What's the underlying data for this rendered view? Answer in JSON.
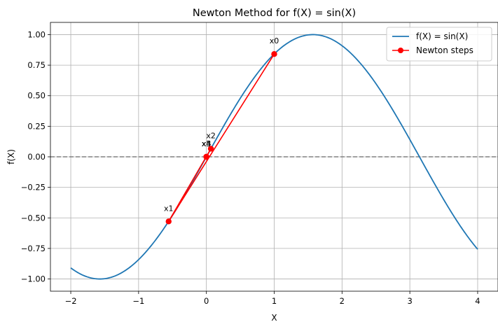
{
  "chart_data": {
    "type": "line",
    "title": "Newton Method for f(X) = sin(X)",
    "xlabel": "X",
    "ylabel": "f(X)",
    "xlim": [
      -2.3,
      4.3
    ],
    "ylim": [
      -1.1,
      1.1
    ],
    "xticks": [
      -2,
      -1,
      0,
      1,
      2,
      3,
      4
    ],
    "yticks": [
      -1.0,
      -0.75,
      -0.5,
      -0.25,
      0.0,
      0.25,
      0.5,
      0.75,
      1.0
    ],
    "xtick_labels": [
      "−2",
      "−1",
      "0",
      "1",
      "2",
      "3",
      "4"
    ],
    "ytick_labels": [
      "−1.00",
      "−0.75",
      "−0.50",
      "−0.25",
      "0.00",
      "0.25",
      "0.50",
      "0.75",
      "1.00"
    ],
    "grid": true,
    "legend_position": "top-right",
    "reference_line": {
      "y": 0,
      "style": "dashed",
      "color": "#808080"
    },
    "series": [
      {
        "name": "f(X) = sin(X)",
        "kind": "curve",
        "function": "sin",
        "x_range": [
          -2,
          4
        ],
        "color": "#1f77b4"
      },
      {
        "name": "Newton steps",
        "kind": "points",
        "color": "#ff0000",
        "points": [
          {
            "label": "x0",
            "x": 1.0,
            "y": 0.841
          },
          {
            "label": "x1",
            "x": -0.557,
            "y": -0.529
          },
          {
            "label": "x2",
            "x": 0.066,
            "y": 0.066
          },
          {
            "label": "x3",
            "x": -0.0001,
            "y": -0.0001
          },
          {
            "label": "x4",
            "x": 0.0,
            "y": 0.0
          },
          {
            "label": "x5",
            "x": 0.0,
            "y": 0.0
          }
        ]
      }
    ]
  }
}
